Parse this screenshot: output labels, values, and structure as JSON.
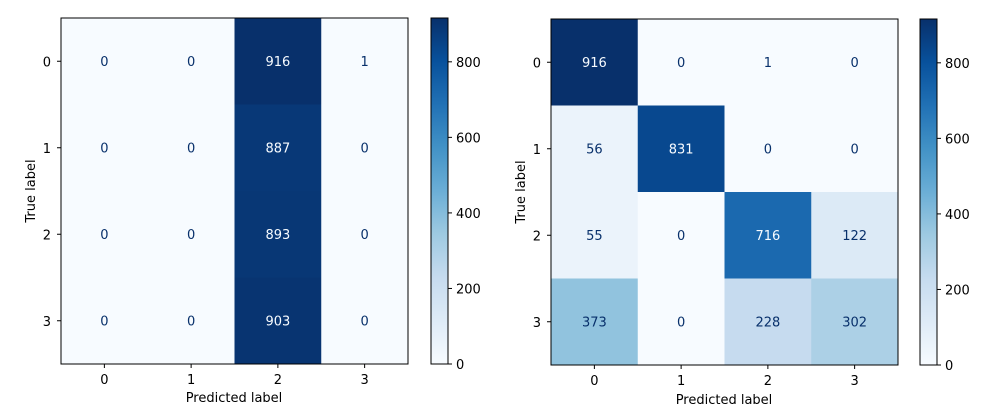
{
  "chart_data": [
    {
      "type": "heatmap",
      "title": "",
      "xlabel": "Predicted label",
      "ylabel": "True label",
      "x_ticks": [
        "0",
        "1",
        "2",
        "3"
      ],
      "y_ticks": [
        "0",
        "1",
        "2",
        "3"
      ],
      "matrix": [
        [
          0,
          0,
          916,
          1
        ],
        [
          0,
          0,
          887,
          0
        ],
        [
          0,
          0,
          893,
          0
        ],
        [
          0,
          0,
          903,
          0
        ]
      ],
      "colormap": "Blues",
      "vmin": 0,
      "vmax": 916,
      "colorbar_ticks": [
        "0",
        "200",
        "400",
        "600",
        "800"
      ]
    },
    {
      "type": "heatmap",
      "title": "",
      "xlabel": "Predicted label",
      "ylabel": "True label",
      "x_ticks": [
        "0",
        "1",
        "2",
        "3"
      ],
      "y_ticks": [
        "0",
        "1",
        "2",
        "3"
      ],
      "matrix": [
        [
          916,
          0,
          1,
          0
        ],
        [
          56,
          831,
          0,
          0
        ],
        [
          55,
          0,
          716,
          122
        ],
        [
          373,
          0,
          228,
          302
        ]
      ],
      "colormap": "Blues",
      "vmin": 0,
      "vmax": 916,
      "colorbar_ticks": [
        "0",
        "200",
        "400",
        "600",
        "800"
      ]
    }
  ],
  "colors": {
    "low": "#f7fbff",
    "high": "#08306b",
    "text_on_light": "#08306b",
    "text_on_dark": "#f7fbff"
  }
}
